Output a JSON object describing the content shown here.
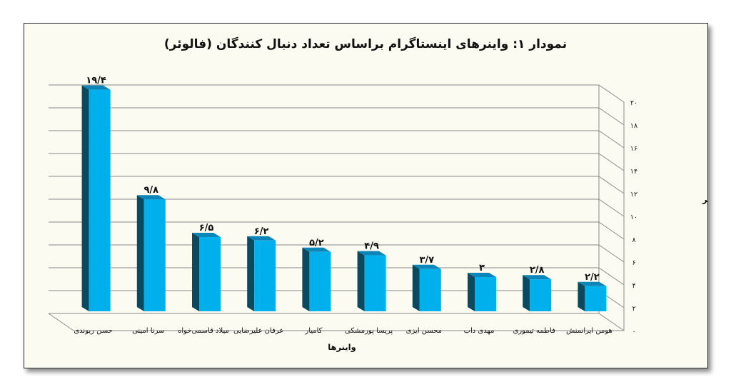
{
  "chart_data": {
    "type": "bar",
    "title": "نمودار ۱: واینرهای اینستاگرام براساس تعداد دنبال کنندگان (فالوئر)",
    "xlabel": "واینرها",
    "ylabel": "تعداد فالوئر",
    "categories": [
      "حسن ریوندی",
      "سرنا امینی",
      "میلاد قاسمی‌خواه",
      "عرفان علیرضایی",
      "کامیار",
      "پریسا پورمشکی",
      "محسن ایزی",
      "مهدی داب",
      "فاطمه تیموری",
      "هومن ایرانمنش"
    ],
    "values": [
      19.4,
      9.8,
      6.5,
      6.2,
      5.2,
      4.9,
      3.7,
      3,
      2.8,
      2.2
    ],
    "data_labels": [
      "۱۹/۴",
      "۹/۸",
      "۶/۵",
      "۶/۲",
      "۵/۲",
      "۴/۹",
      "۳/۷",
      "۳",
      "۲/۸",
      "۲/۲"
    ],
    "ylim": [
      0,
      20
    ],
    "y_ticks": [
      0,
      2,
      4,
      6,
      8,
      10,
      12,
      14,
      16,
      18,
      20
    ],
    "y_tick_labels": [
      "۰",
      "۲",
      "۴",
      "۶",
      "۸",
      "۱۰",
      "۱۲",
      "۱۴",
      "۱۶",
      "۱۸",
      "۲۰"
    ],
    "y_axis_position": "right",
    "grid": true,
    "bar_color": "#00b0ec",
    "bar_side_color": "#0a4a60",
    "bar_top_color": "#0c86b8"
  }
}
